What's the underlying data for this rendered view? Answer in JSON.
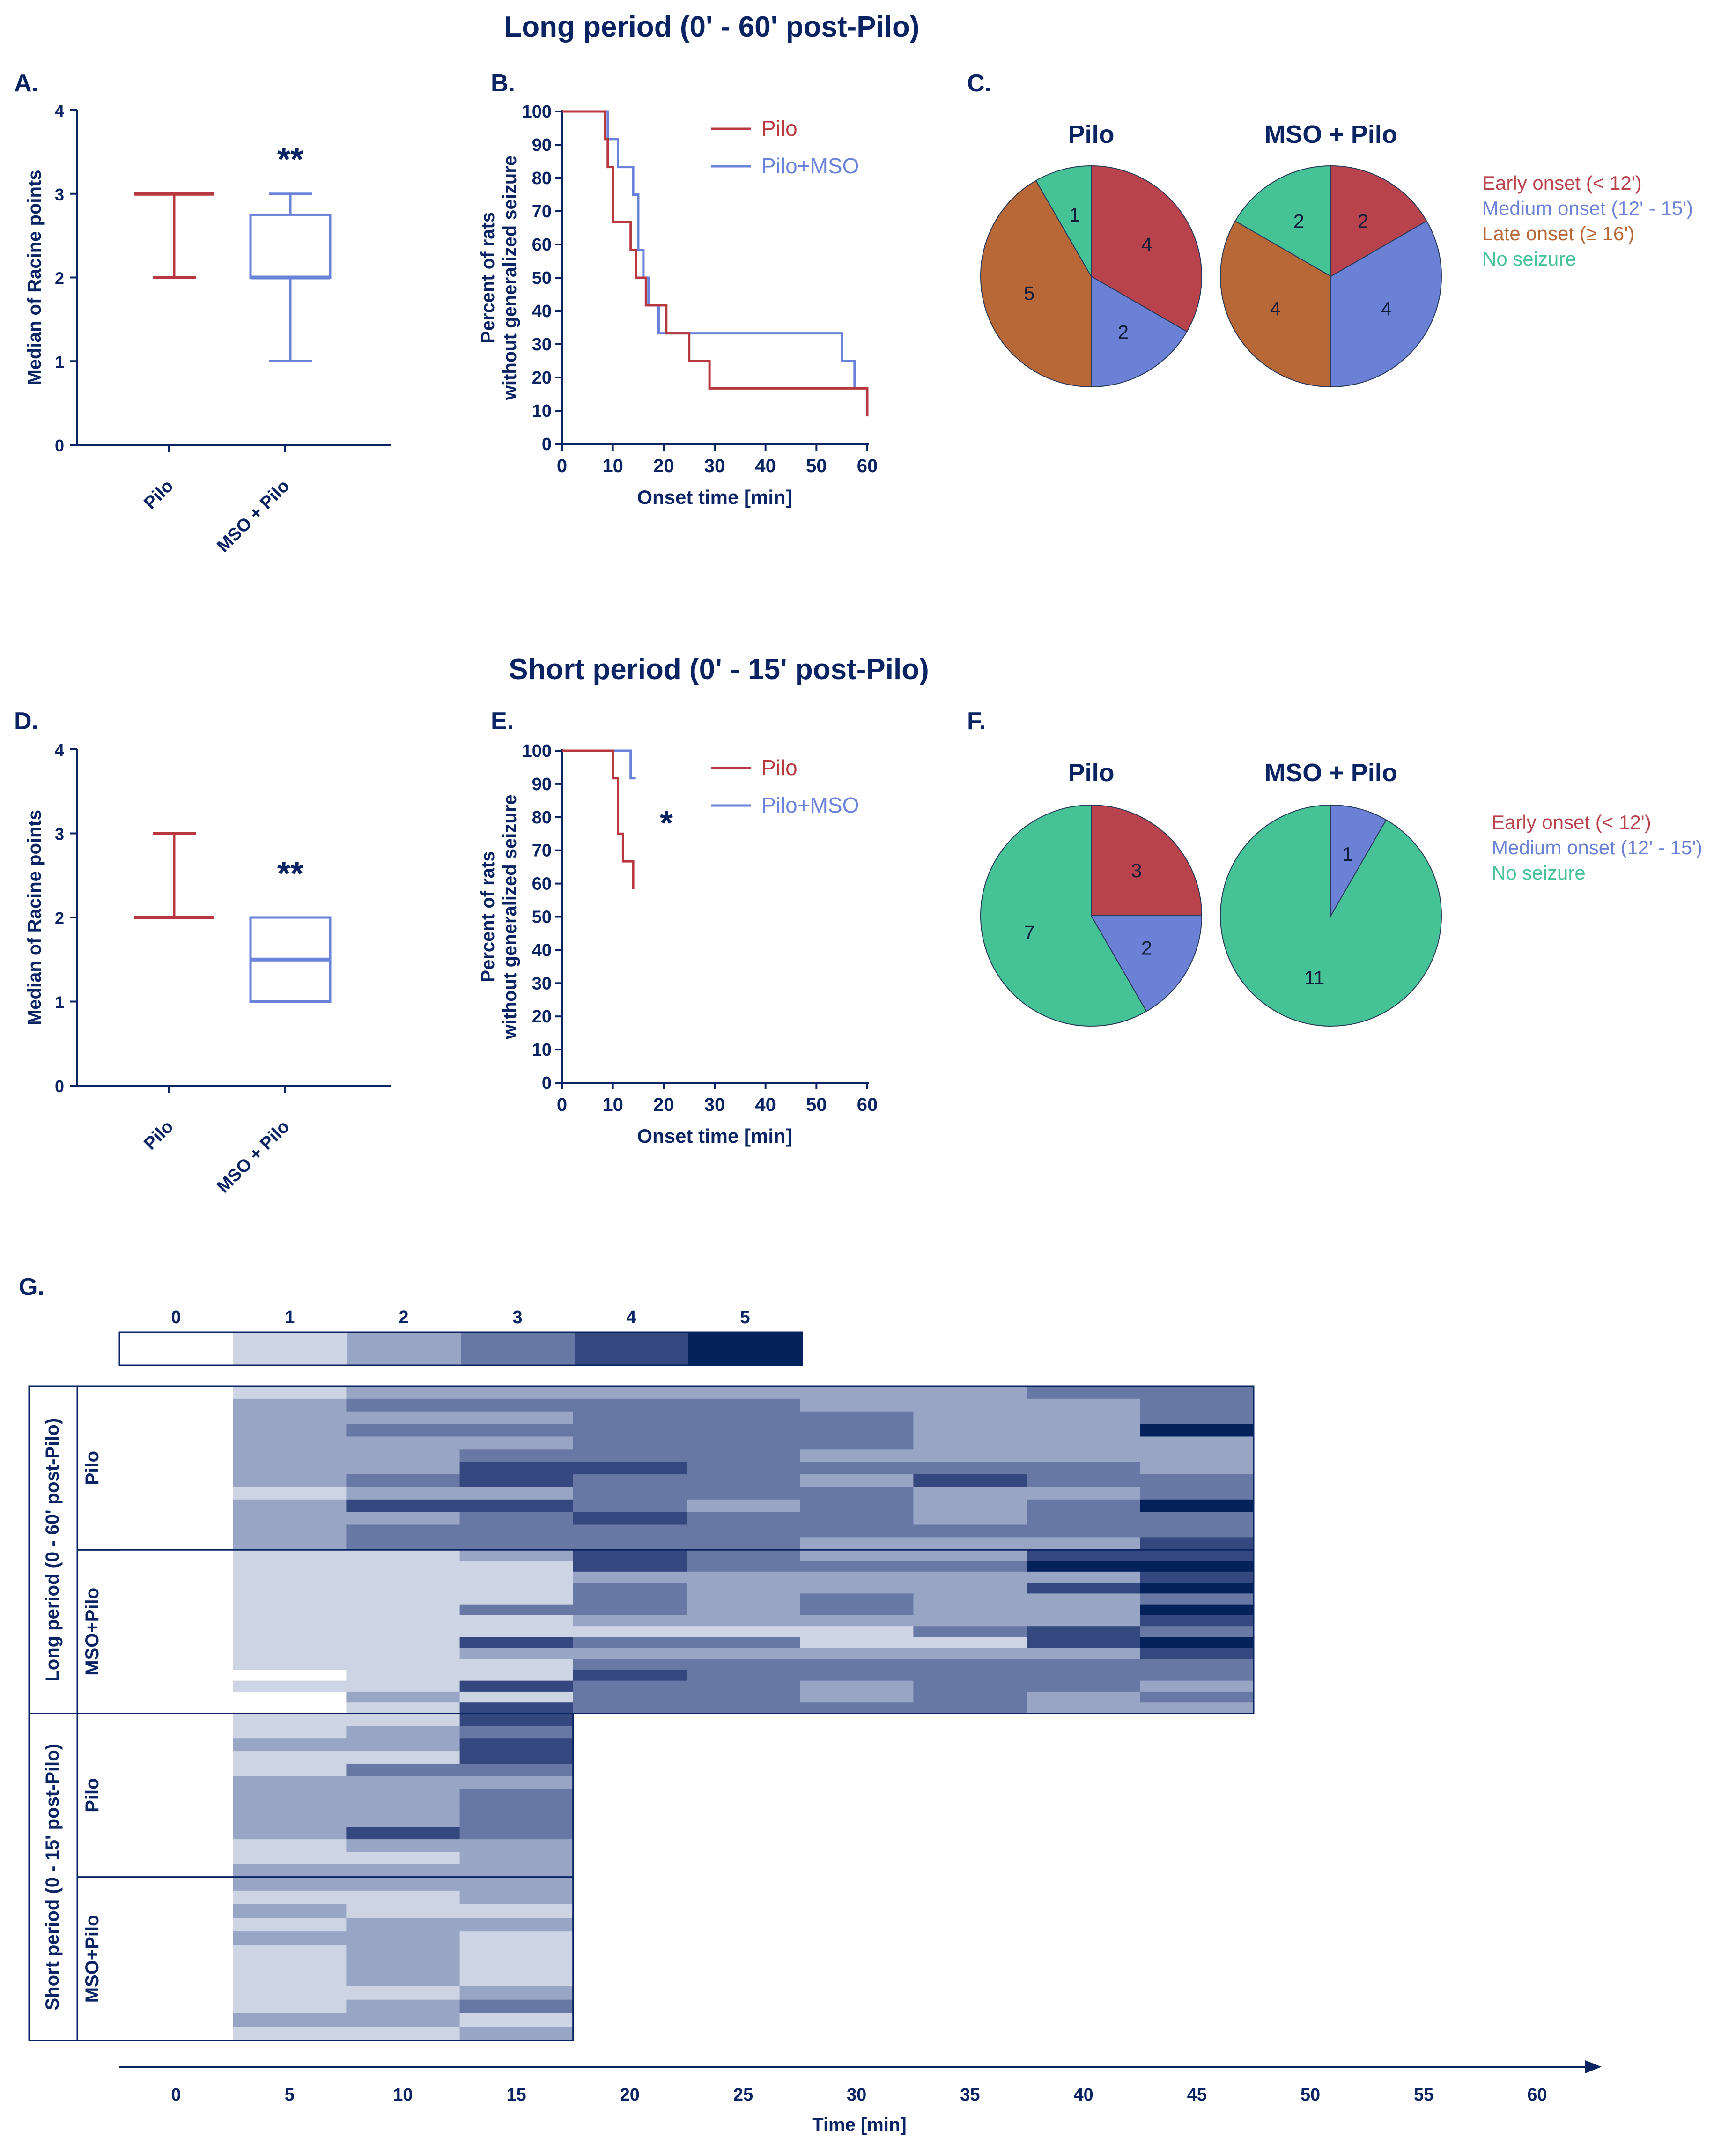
{
  "sections": {
    "long_title": "Long period (0' - 60' post-Pilo)",
    "short_title": "Short period (0' - 15' post-Pilo)"
  },
  "colors": {
    "navy": "#0a2463",
    "pilo": "#b8383f",
    "mso": "#6a82d9",
    "early": "#b8434c",
    "medium": "#6b81d6",
    "late": "#b86836",
    "none": "#45c296",
    "scale": [
      "#ffffff",
      "#cdd4e4",
      "#98a5c5",
      "#6878a4",
      "#34487f",
      "#03215a"
    ]
  },
  "chart_data": [
    {
      "panel": "A.",
      "type": "box",
      "ylabel": "Median of Racine points",
      "ylim": [
        0,
        4
      ],
      "yticks": [
        "0",
        "1",
        "2",
        "3",
        "4"
      ],
      "categories": [
        "Pilo",
        "MSO + Pilo"
      ],
      "boxes": [
        {
          "min": 2,
          "q1": 3,
          "median": 3,
          "q3": 3,
          "max": 3
        },
        {
          "min": 1,
          "q1": 2,
          "median": 2,
          "q3": 2.75,
          "max": 3
        }
      ],
      "significance": "**"
    },
    {
      "panel": "B.",
      "type": "line",
      "ylabel": [
        "Percent of rats",
        "without generalized seizure"
      ],
      "xlabel": "Onset time [min]",
      "xlim": [
        0,
        60
      ],
      "ylim": [
        0,
        100
      ],
      "xticks": [
        "0",
        "10",
        "20",
        "30",
        "40",
        "50",
        "60"
      ],
      "yticks": [
        "0",
        "10",
        "20",
        "30",
        "40",
        "50",
        "60",
        "70",
        "80",
        "90",
        "100"
      ],
      "legend": [
        "Pilo",
        "Pilo+MSO"
      ],
      "series": [
        {
          "name": "Pilo",
          "steps": [
            [
              0,
              100
            ],
            [
              8.5,
              100
            ],
            [
              8.5,
              91.7
            ],
            [
              9,
              91.7
            ],
            [
              9,
              83.3
            ],
            [
              10,
              83.3
            ],
            [
              10,
              66.7
            ],
            [
              13.5,
              66.7
            ],
            [
              13.5,
              58.3
            ],
            [
              14.5,
              58.3
            ],
            [
              14.5,
              50
            ],
            [
              16.5,
              50
            ],
            [
              16.5,
              41.7
            ],
            [
              20.5,
              41.7
            ],
            [
              20.5,
              33.3
            ],
            [
              25,
              33.3
            ],
            [
              25,
              25
            ],
            [
              29,
              25
            ],
            [
              29,
              16.7
            ],
            [
              60,
              16.7
            ],
            [
              60,
              8.3
            ]
          ]
        },
        {
          "name": "Pilo+MSO",
          "steps": [
            [
              0,
              100
            ],
            [
              9,
              100
            ],
            [
              9,
              91.7
            ],
            [
              11,
              91.7
            ],
            [
              11,
              83.3
            ],
            [
              14,
              83.3
            ],
            [
              14,
              75
            ],
            [
              15,
              75
            ],
            [
              15,
              58.3
            ],
            [
              16,
              58.3
            ],
            [
              16,
              50
            ],
            [
              17,
              50
            ],
            [
              17,
              41.7
            ],
            [
              19,
              41.7
            ],
            [
              19,
              33.3
            ],
            [
              55,
              33.3
            ],
            [
              55,
              25
            ],
            [
              57.5,
              25
            ],
            [
              57.5,
              16.7
            ]
          ]
        }
      ],
      "significance": ""
    },
    {
      "panel": "C.",
      "type": "pie",
      "pies": [
        {
          "title": "Pilo",
          "slices": [
            4,
            2,
            5,
            1
          ]
        },
        {
          "title": "MSO + Pilo",
          "slices": [
            2,
            4,
            4,
            2
          ]
        }
      ],
      "legend": [
        "Early onset (< 12')",
        "Medium onset (12' - 15')",
        "Late onset (≥ 16')",
        "No seizure"
      ]
    },
    {
      "panel": "D.",
      "type": "box",
      "ylabel": "Median of Racine points",
      "ylim": [
        0,
        4
      ],
      "yticks": [
        "0",
        "1",
        "2",
        "3",
        "4"
      ],
      "categories": [
        "Pilo",
        "MSO + Pilo"
      ],
      "boxes": [
        {
          "min": 2,
          "q1": 2,
          "median": 2,
          "q3": 2,
          "max": 3
        },
        {
          "min": 1,
          "q1": 1,
          "median": 1.5,
          "q3": 2,
          "max": 2
        }
      ],
      "significance": "**"
    },
    {
      "panel": "E.",
      "type": "line",
      "ylabel": [
        "Percent of rats",
        "without generalized seizure"
      ],
      "xlabel": "Onset time [min]",
      "xlim": [
        0,
        60
      ],
      "ylim": [
        0,
        100
      ],
      "xticks": [
        "0",
        "10",
        "20",
        "30",
        "40",
        "50",
        "60"
      ],
      "yticks": [
        "0",
        "10",
        "20",
        "30",
        "40",
        "50",
        "60",
        "70",
        "80",
        "90",
        "100"
      ],
      "legend": [
        "Pilo",
        "Pilo+MSO"
      ],
      "series": [
        {
          "name": "Pilo",
          "steps": [
            [
              0,
              100
            ],
            [
              10,
              100
            ],
            [
              10,
              91.7
            ],
            [
              11,
              91.7
            ],
            [
              11,
              75
            ],
            [
              12,
              75
            ],
            [
              12,
              66.7
            ],
            [
              14,
              66.7
            ],
            [
              14,
              58.3
            ]
          ]
        },
        {
          "name": "Pilo+MSO",
          "steps": [
            [
              0,
              100
            ],
            [
              13.5,
              100
            ],
            [
              13.5,
              91.7
            ],
            [
              14.5,
              91.7
            ]
          ]
        }
      ],
      "significance": "*"
    },
    {
      "panel": "F.",
      "type": "pie",
      "pies": [
        {
          "title": "Pilo",
          "slices": [
            3,
            2,
            7
          ]
        },
        {
          "title": "MSO + Pilo",
          "slices": [
            0,
            1,
            11
          ]
        }
      ],
      "legend": [
        "Early onset (< 12')",
        "Medium onset (12' - 15')",
        "No seizure"
      ]
    },
    {
      "panel": "G.",
      "type": "heatmap",
      "scale_labels": [
        "0",
        "1",
        "2",
        "3",
        "4",
        "5"
      ],
      "xlabel": "Time [min]",
      "xticks": [
        "0",
        "5",
        "10",
        "15",
        "20",
        "25",
        "30",
        "35",
        "40",
        "45",
        "50",
        "55",
        "60"
      ],
      "period_labels": [
        "Long period (0 - 60' post-Pilo)",
        "Short period (0 - 15' post-Pilo)"
      ],
      "blocks": [
        {
          "group": "Pilo",
          "rows": [
            "0122222233",
            "0233332223",
            "0222333223",
            "0233333225",
            "0222333222",
            "0223332222",
            "0224433332",
            "0234332433",
            "0122333223",
            "0244323235",
            "0223433233",
            "0233333333",
            "0233332224"
          ]
        },
        {
          "group": "MSO+Pilo",
          "rows": [
            "0112432244",
            "0111433355",
            "0111222224",
            "0111322245",
            "0111323223",
            "0113323225",
            "0111222224",
            "0111111343",
            "0114331145",
            "0112222224",
            "0111333333",
            "0011433333",
            "0114332332",
            "0021332323",
            "0014333322"
          ]
        },
        {
          "group": "Pilo",
          "rows": [
            "0114",
            "0123",
            "0224",
            "0114",
            "0133",
            "0222",
            "0223",
            "0223",
            "0223",
            "0243",
            "0122",
            "0112",
            "0222"
          ]
        },
        {
          "group": "MSO+Pilo",
          "rows": [
            "0222",
            "0112",
            "0211",
            "0122",
            "0221",
            "0121",
            "0121",
            "0121",
            "0112",
            "0123",
            "0221",
            "0112"
          ]
        }
      ]
    }
  ]
}
